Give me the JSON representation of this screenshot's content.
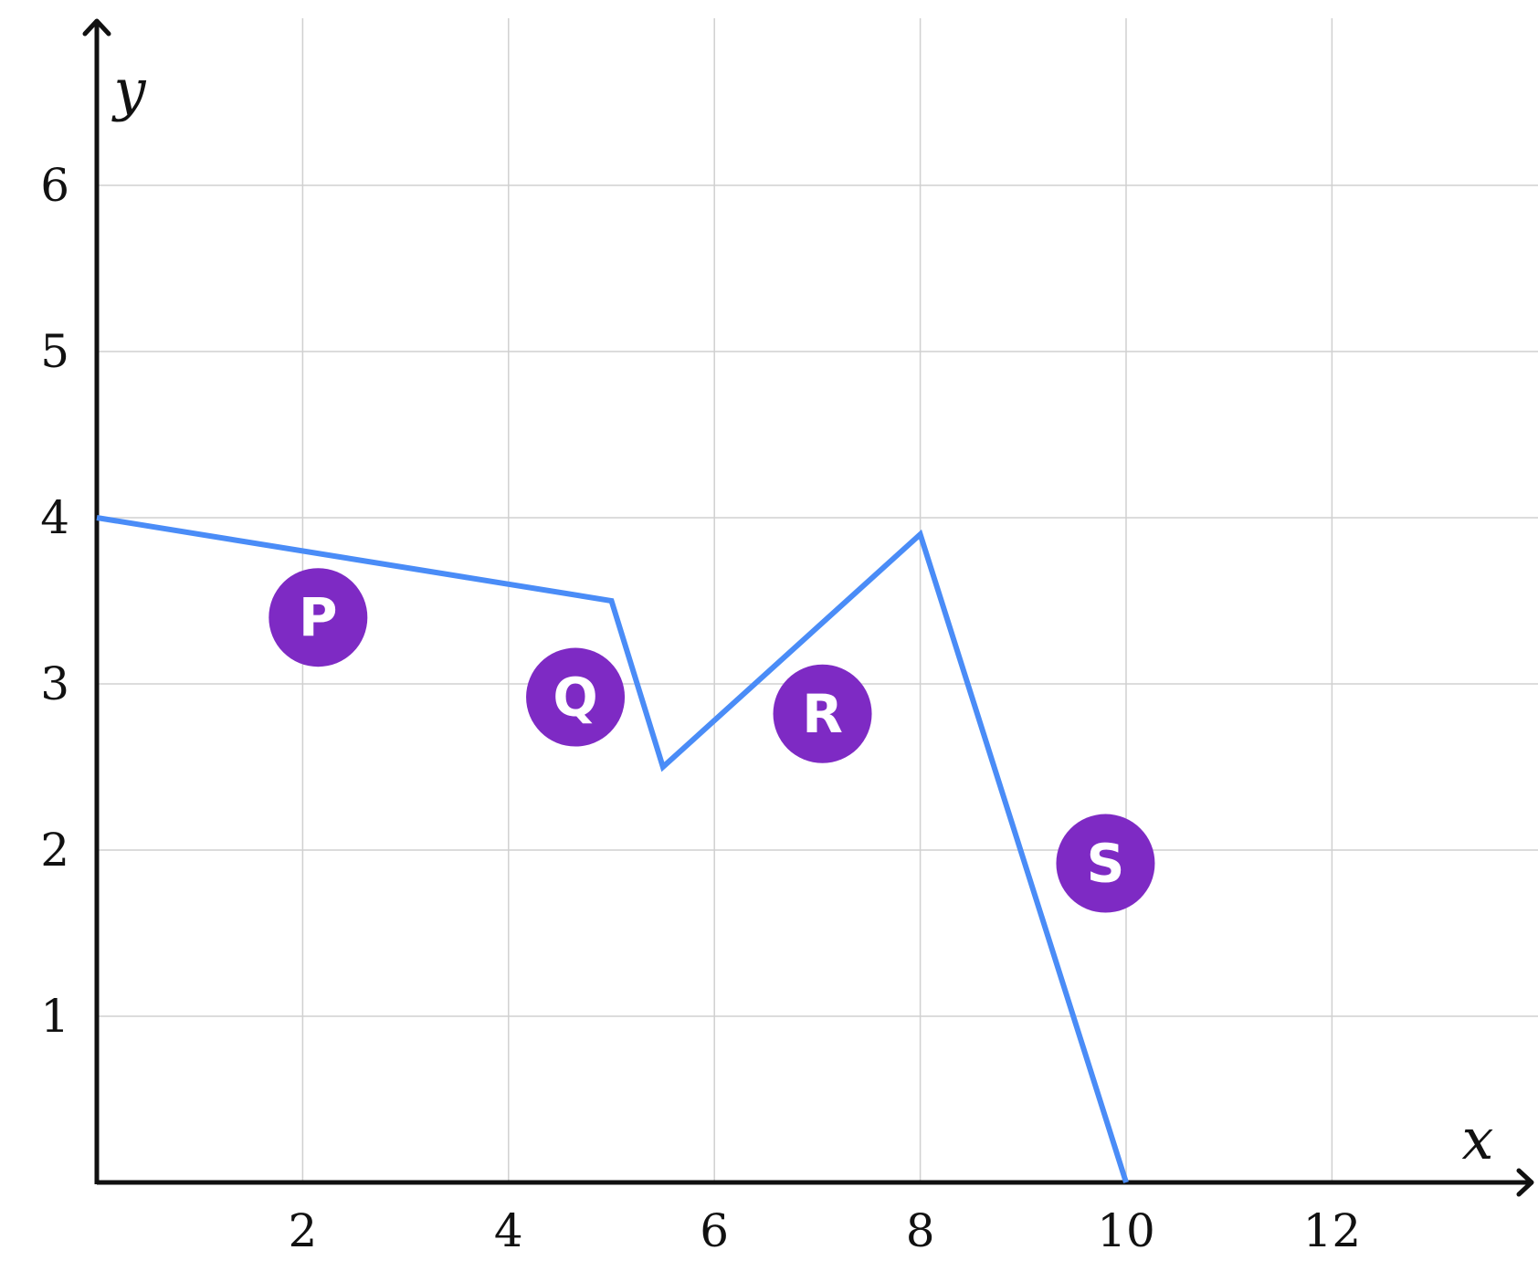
{
  "chart_data": {
    "type": "line",
    "xlabel": "x",
    "ylabel": "y",
    "xlim": [
      0,
      14
    ],
    "ylim": [
      0,
      7
    ],
    "grid": true,
    "x_ticks": [
      2,
      4,
      6,
      8,
      10,
      12
    ],
    "y_ticks": [
      1,
      2,
      3,
      4,
      5,
      6
    ],
    "x_tick_labels": [
      "2",
      "4",
      "6",
      "8",
      "10",
      "12"
    ],
    "y_tick_labels": [
      "1",
      "2",
      "3",
      "4",
      "5",
      "6"
    ],
    "series": [
      {
        "x": [
          0,
          5,
          5.5,
          8,
          10
        ],
        "y": [
          4,
          3.5,
          2.5,
          3.9,
          0
        ],
        "color": "#4a8cf7"
      }
    ],
    "annotations": [
      {
        "label": "P",
        "x": 2.15,
        "y": 3.4
      },
      {
        "label": "Q",
        "x": 4.65,
        "y": 2.92
      },
      {
        "label": "R",
        "x": 7.05,
        "y": 2.82
      },
      {
        "label": "S",
        "x": 9.8,
        "y": 1.92
      }
    ],
    "colors": {
      "line": "#4a8cf7",
      "marker": "#7e2ac4",
      "grid": "#d0d0d0",
      "axis": "#111111"
    }
  }
}
